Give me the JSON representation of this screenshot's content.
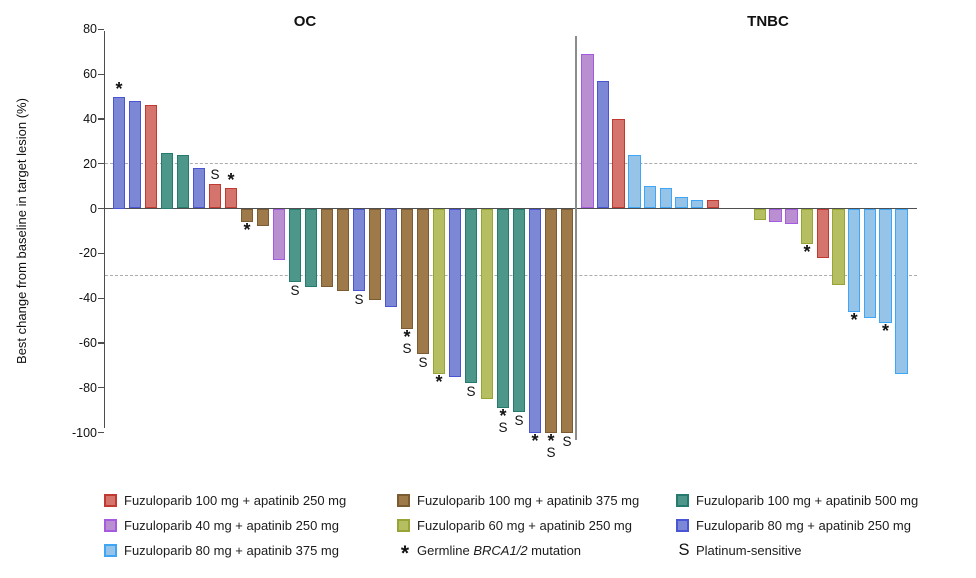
{
  "figure": {
    "y_axis_label": "Best change from baseline in target lesion (%)",
    "panel_titles": {
      "left": "OC",
      "right": "TNBC"
    }
  },
  "colors": {
    "red": {
      "fill": "#d5736d",
      "border": "#c03a32"
    },
    "brown": {
      "fill": "#9e7a4b",
      "border": "#7b5b31"
    },
    "teal": {
      "fill": "#4c968a",
      "border": "#267a6e"
    },
    "purple": {
      "fill": "#ba8fd2",
      "border": "#a65ae0"
    },
    "olive": {
      "fill": "#b6be62",
      "border": "#99a436"
    },
    "slateblue": {
      "fill": "#7c88d5",
      "border": "#4a55d6"
    },
    "lightblue": {
      "fill": "#96c4e8",
      "border": "#3fa5f5"
    }
  },
  "legend": {
    "items": [
      {
        "col": 0,
        "row": 0,
        "swatch": "red",
        "label": "Fuzuloparib 100 mg + apatinib 250 mg"
      },
      {
        "col": 0,
        "row": 1,
        "swatch": "purple",
        "label": "Fuzuloparib 40 mg + apatinib 250 mg"
      },
      {
        "col": 0,
        "row": 2,
        "swatch": "lightblue",
        "label": "Fuzuloparib 80 mg + apatinib 375 mg"
      },
      {
        "col": 1,
        "row": 0,
        "swatch": "brown",
        "label": "Fuzuloparib 100 mg + apatinib 375 mg"
      },
      {
        "col": 1,
        "row": 1,
        "swatch": "olive",
        "label": "Fuzuloparib 60 mg + apatinib 250 mg"
      },
      {
        "col": 1,
        "row": 2,
        "symbol": "*",
        "label_parts": [
          "Germline ",
          "BRCA1/2",
          " mutation"
        ]
      },
      {
        "col": 2,
        "row": 0,
        "swatch": "teal",
        "label": "Fuzuloparib 100 mg + apatinib 500 mg"
      },
      {
        "col": 2,
        "row": 1,
        "swatch": "slateblue",
        "label": "Fuzuloparib 80 mg + apatinib 250 mg"
      },
      {
        "col": 2,
        "row": 2,
        "symbol": "S",
        "label": "Platinum-sensitive"
      }
    ]
  },
  "chart_data": {
    "type": "bar",
    "title": "",
    "xlabel": "",
    "ylabel": "Best change from baseline in target lesion (%)",
    "ylim": [
      -100,
      80
    ],
    "yticks": [
      80,
      60,
      40,
      20,
      0,
      -20,
      -40,
      -60,
      -80,
      -100
    ],
    "reference_lines": [
      20,
      -30
    ],
    "grid": false,
    "legend_position": "bottom",
    "mark_meanings": {
      "*": "Germline BRCA1/2 mutation",
      "S": "Platinum-sensitive"
    },
    "panels": [
      {
        "title": "OC",
        "bars": [
          {
            "v": 50,
            "g": "slateblue",
            "m": "*"
          },
          {
            "v": 48,
            "g": "slateblue",
            "m": ""
          },
          {
            "v": 46,
            "g": "red",
            "m": ""
          },
          {
            "v": 25,
            "g": "teal",
            "m": ""
          },
          {
            "v": 24,
            "g": "teal",
            "m": ""
          },
          {
            "v": 18,
            "g": "slateblue",
            "m": ""
          },
          {
            "v": 11,
            "g": "red",
            "m": "S"
          },
          {
            "v": 9,
            "g": "red",
            "m": "*"
          },
          {
            "v": -6,
            "g": "brown",
            "m": "*"
          },
          {
            "v": -8,
            "g": "brown",
            "m": ""
          },
          {
            "v": -23,
            "g": "purple",
            "m": ""
          },
          {
            "v": -33,
            "g": "teal",
            "m": "S"
          },
          {
            "v": -35,
            "g": "teal",
            "m": ""
          },
          {
            "v": -35,
            "g": "brown",
            "m": ""
          },
          {
            "v": -37,
            "g": "brown",
            "m": ""
          },
          {
            "v": -37,
            "g": "slateblue",
            "m": "S"
          },
          {
            "v": -41,
            "g": "brown",
            "m": ""
          },
          {
            "v": -44,
            "g": "slateblue",
            "m": ""
          },
          {
            "v": -54,
            "g": "brown",
            "m": "*S"
          },
          {
            "v": -65,
            "g": "brown",
            "m": "S"
          },
          {
            "v": -74,
            "g": "olive",
            "m": "*"
          },
          {
            "v": -75,
            "g": "slateblue",
            "m": ""
          },
          {
            "v": -78,
            "g": "teal",
            "m": "S"
          },
          {
            "v": -85,
            "g": "olive",
            "m": ""
          },
          {
            "v": -89,
            "g": "teal",
            "m": "*S"
          },
          {
            "v": -91,
            "g": "teal",
            "m": "S"
          },
          {
            "v": -100,
            "g": "slateblue",
            "m": "*"
          },
          {
            "v": -100,
            "g": "brown",
            "m": "*S"
          },
          {
            "v": -100,
            "g": "brown",
            "m": "S"
          }
        ]
      },
      {
        "title": "TNBC",
        "bars": [
          {
            "v": 69,
            "g": "purple",
            "m": ""
          },
          {
            "v": 57,
            "g": "slateblue",
            "m": ""
          },
          {
            "v": 40,
            "g": "red",
            "m": ""
          },
          {
            "v": 24,
            "g": "lightblue",
            "m": ""
          },
          {
            "v": 10,
            "g": "lightblue",
            "m": ""
          },
          {
            "v": 9,
            "g": "lightblue",
            "m": ""
          },
          {
            "v": 5,
            "g": "lightblue",
            "m": ""
          },
          {
            "v": 4,
            "g": "lightblue",
            "m": ""
          },
          {
            "v": 4,
            "g": "red",
            "m": ""
          },
          {
            "v": 0,
            "g": "none",
            "m": ""
          },
          {
            "v": 0,
            "g": "none",
            "m": ""
          },
          {
            "v": -5,
            "g": "olive",
            "m": ""
          },
          {
            "v": -6,
            "g": "purple",
            "m": ""
          },
          {
            "v": -7,
            "g": "purple",
            "m": ""
          },
          {
            "v": -16,
            "g": "olive",
            "m": "*"
          },
          {
            "v": -22,
            "g": "red",
            "m": ""
          },
          {
            "v": -34,
            "g": "olive",
            "m": ""
          },
          {
            "v": -46,
            "g": "lightblue",
            "m": "*"
          },
          {
            "v": -49,
            "g": "lightblue",
            "m": ""
          },
          {
            "v": -51,
            "g": "lightblue",
            "m": "*"
          },
          {
            "v": -74,
            "g": "lightblue",
            "m": ""
          }
        ]
      }
    ]
  }
}
